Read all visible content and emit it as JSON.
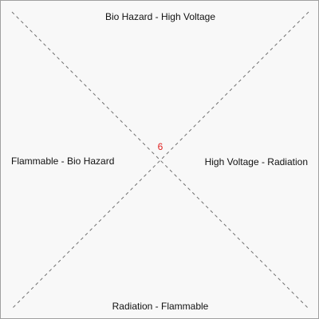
{
  "labels": {
    "top": "Bio Hazard - High Voltage",
    "bottom": "Radiation - Flammable",
    "left": "Flammable - Bio Hazard",
    "right": "High Voltage - Radiation"
  },
  "center_value": "6",
  "colors": {
    "background": "#f8f8f8",
    "border": "#a0a0a0",
    "lines": "#707070",
    "text": "#111111",
    "center_value": "#e02020"
  }
}
